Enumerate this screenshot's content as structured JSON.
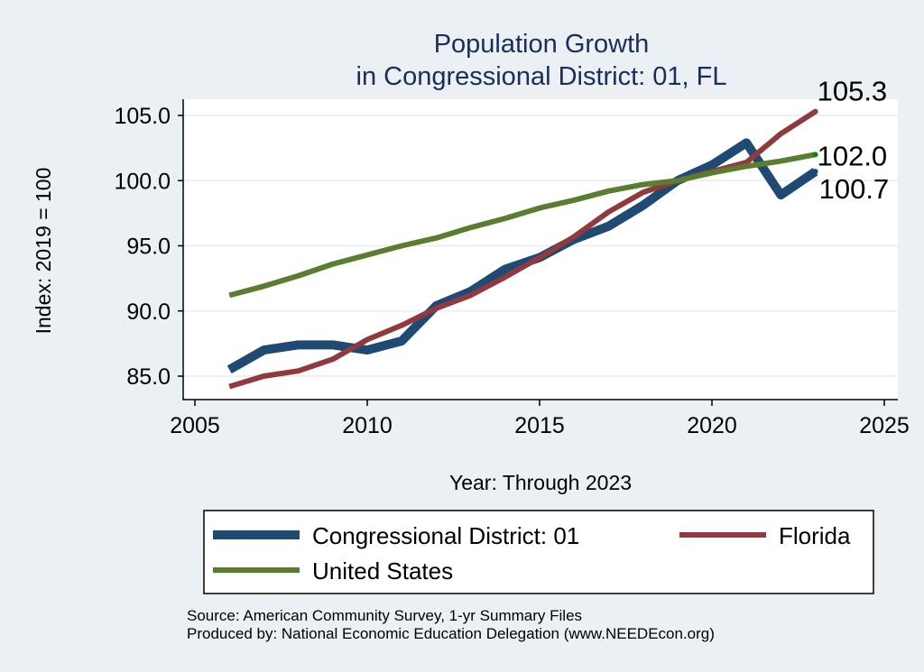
{
  "chart_data": {
    "type": "line",
    "title": "Population Growth",
    "subtitle": "in Congressional District: 01, FL",
    "xlabel": "Year: Through 2023",
    "ylabel": "Index: 2019 = 100",
    "xlim": [
      2005,
      2025
    ],
    "ylim": [
      83.5,
      106.5
    ],
    "xticks": [
      2005,
      2010,
      2015,
      2020,
      2025
    ],
    "yticks": [
      "85.0",
      "90.0",
      "95.0",
      "100.0",
      "105.0"
    ],
    "grid": true,
    "legend_position": "bottom",
    "x": [
      2006,
      2007,
      2008,
      2009,
      2010,
      2011,
      2012,
      2013,
      2014,
      2015,
      2016,
      2017,
      2018,
      2019,
      2020,
      2021,
      2022,
      2023
    ],
    "series": [
      {
        "name": "Congressional District: 01",
        "color": "#1f4a73",
        "values": [
          85.5,
          87.0,
          87.4,
          87.4,
          87.0,
          87.7,
          90.4,
          91.5,
          93.2,
          94.1,
          95.5,
          96.5,
          98.1,
          100.0,
          101.2,
          102.9,
          98.9,
          100.7
        ],
        "end_label": "100.7"
      },
      {
        "name": "Florida",
        "color": "#903a40",
        "values": [
          84.2,
          85.0,
          85.4,
          86.3,
          87.8,
          88.9,
          90.2,
          91.2,
          92.6,
          94.1,
          95.7,
          97.6,
          99.1,
          100.0,
          100.7,
          101.4,
          103.6,
          105.3
        ],
        "end_label": "105.3"
      },
      {
        "name": "United States",
        "color": "#5a7d2f",
        "values": [
          91.2,
          91.9,
          92.7,
          93.6,
          94.3,
          95.0,
          95.6,
          96.4,
          97.1,
          97.9,
          98.5,
          99.2,
          99.7,
          100.0,
          100.6,
          101.1,
          101.5,
          102.0
        ],
        "end_label": "102.0"
      }
    ]
  },
  "notes": {
    "source": "Source: American Community Survey, 1-yr Summary Files",
    "produced": "Produced by: National Economic Education Delegation (www.NEEDEcon.org)"
  }
}
